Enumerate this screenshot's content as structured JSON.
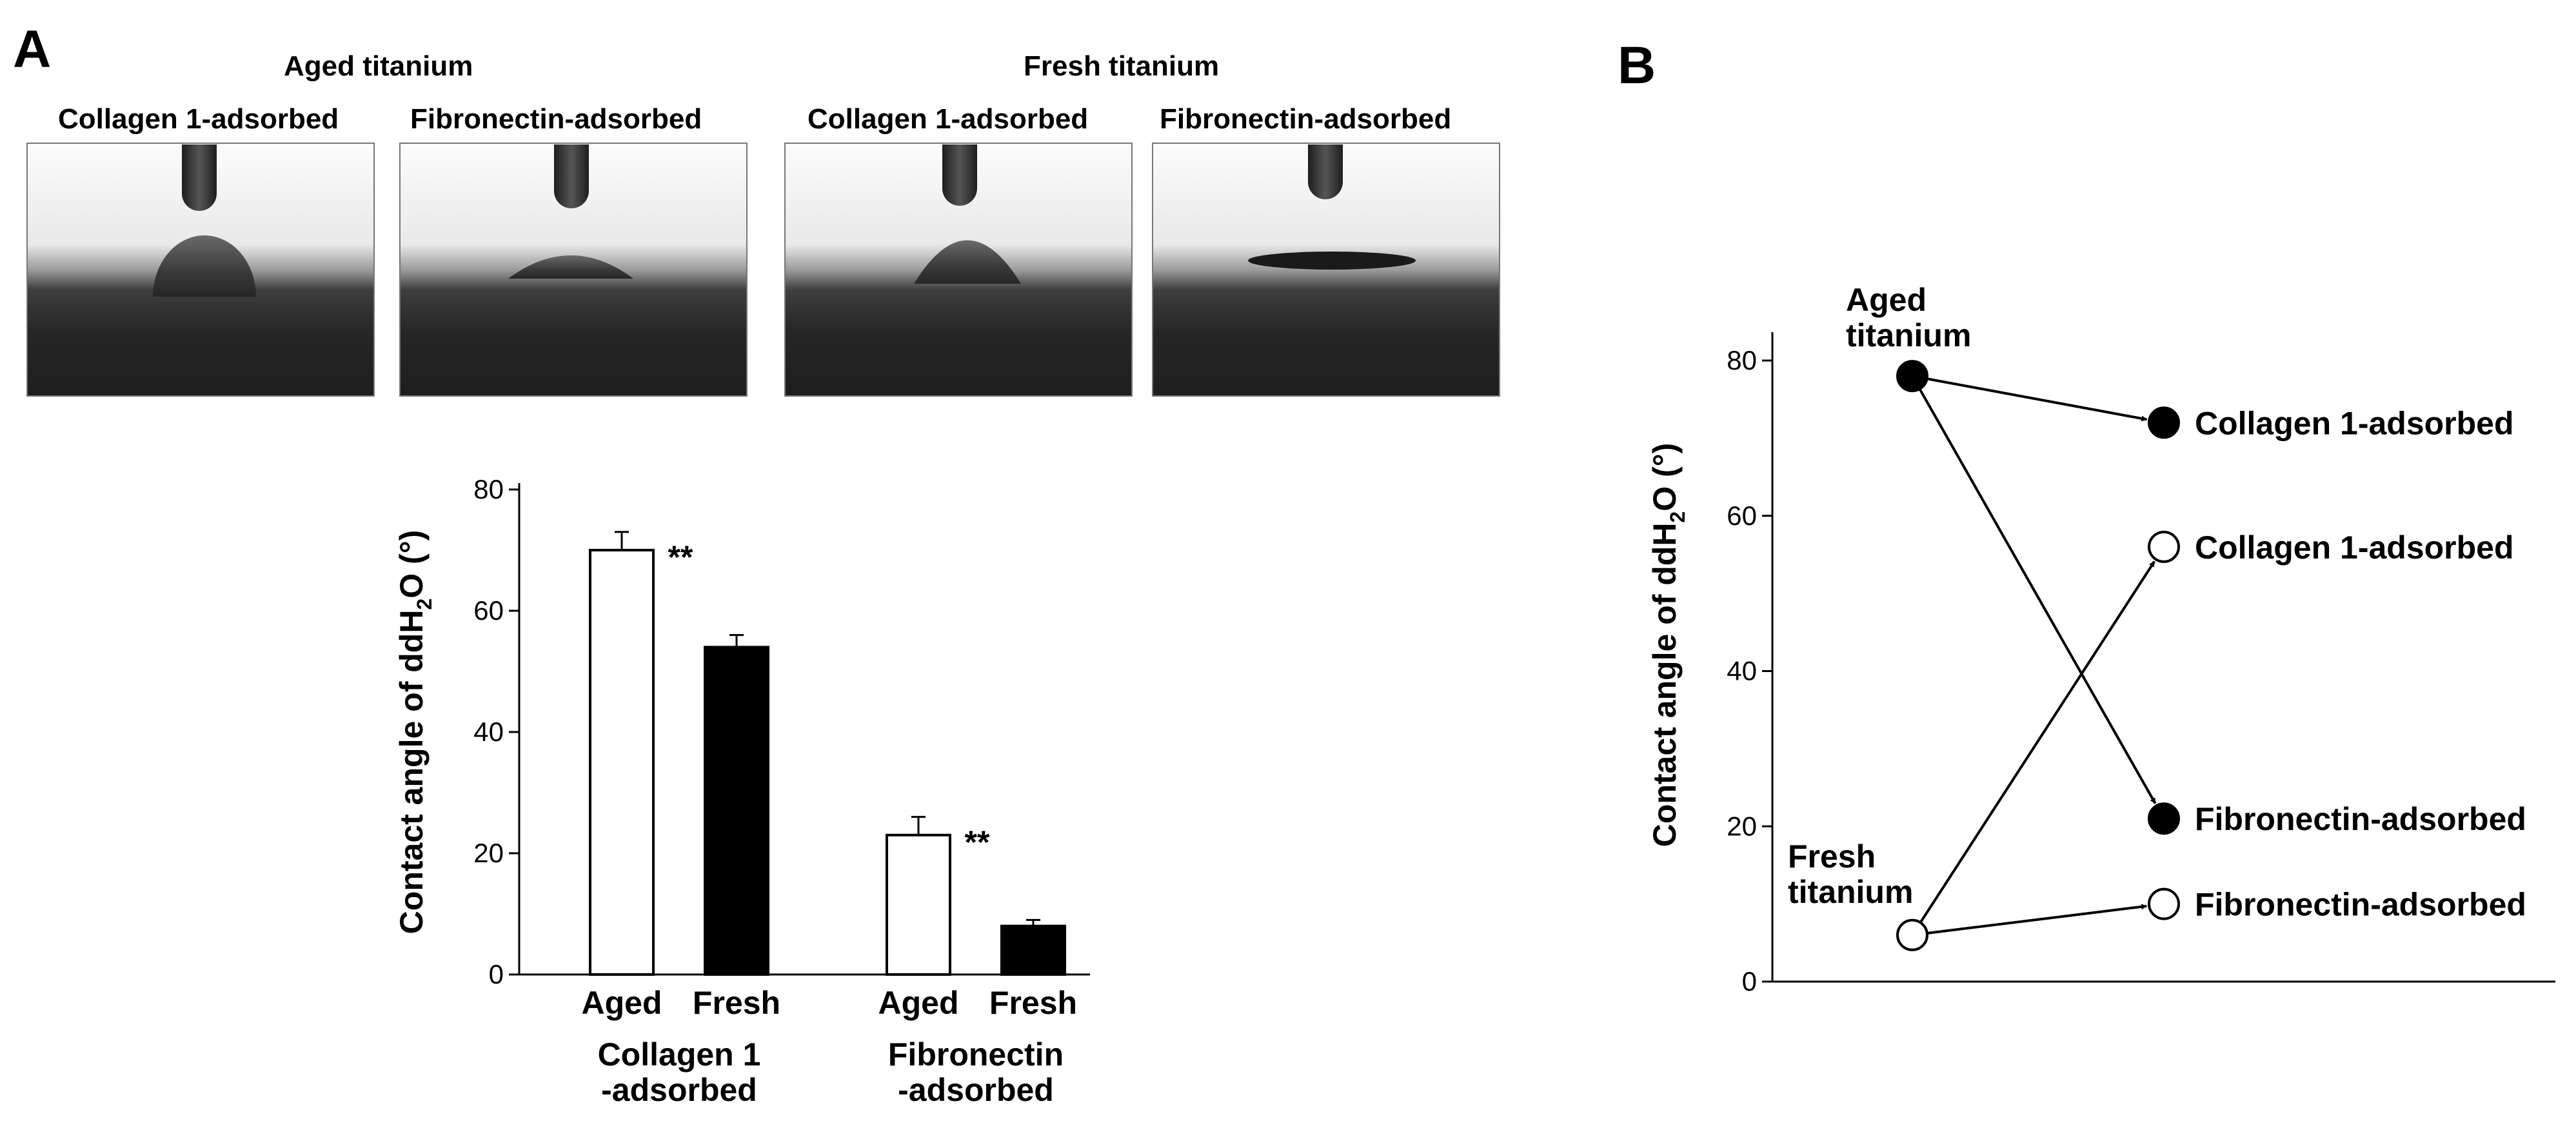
{
  "panel_a": {
    "letter": "A",
    "groups": [
      {
        "title": "Aged titanium",
        "photos": [
          "Collagen 1-adsorbed",
          "Fibronectin-adsorbed"
        ]
      },
      {
        "title": "Fresh titanium",
        "photos": [
          "Collagen 1-adsorbed",
          "Fibronectin-adsorbed"
        ]
      }
    ]
  },
  "panel_b": {
    "letter": "B"
  },
  "chart_data": [
    {
      "type": "bar",
      "panel": "A",
      "ylabel": "Contact angle of ddH2O (°)",
      "ylim": [
        0,
        80
      ],
      "yticks": [
        0,
        20,
        40,
        60,
        80
      ],
      "grid": false,
      "groups": [
        {
          "label": [
            "Collagen 1",
            "-adsorbed"
          ],
          "bars": [
            {
              "x_label": "Aged",
              "value": 70,
              "error": 3,
              "fill": "#ffffff"
            },
            {
              "x_label": "Fresh",
              "value": 54,
              "error": 2,
              "fill": "#000000"
            }
          ],
          "annotation": "**"
        },
        {
          "label": [
            "Fibronectin",
            "-adsorbed"
          ],
          "bars": [
            {
              "x_label": "Aged",
              "value": 23,
              "error": 3,
              "fill": "#ffffff"
            },
            {
              "x_label": "Fresh",
              "value": 8,
              "error": 1,
              "fill": "#000000"
            }
          ],
          "annotation": "**"
        }
      ]
    },
    {
      "type": "scatter",
      "panel": "B",
      "ylabel": "Contact angle of ddH2O (°)",
      "ylim": [
        0,
        80
      ],
      "yticks": [
        0,
        20,
        40,
        60,
        80
      ],
      "grid": false,
      "start_points": [
        {
          "id": "aged",
          "label": [
            "Aged",
            "titanium"
          ],
          "y": 78,
          "filled": true
        },
        {
          "id": "fresh",
          "label": [
            "Fresh",
            "titanium"
          ],
          "y": 6,
          "filled": false
        }
      ],
      "end_points": [
        {
          "label": "Collagen 1-adsorbed",
          "y": 72,
          "filled": true,
          "from": "aged"
        },
        {
          "label": "Collagen 1-adsorbed",
          "y": 56,
          "filled": false,
          "from": "fresh"
        },
        {
          "label": "Fibronectin-adsorbed",
          "y": 21,
          "filled": true,
          "from": "aged"
        },
        {
          "label": "Fibronectin-adsorbed",
          "y": 10,
          "filled": false,
          "from": "fresh"
        }
      ]
    }
  ]
}
